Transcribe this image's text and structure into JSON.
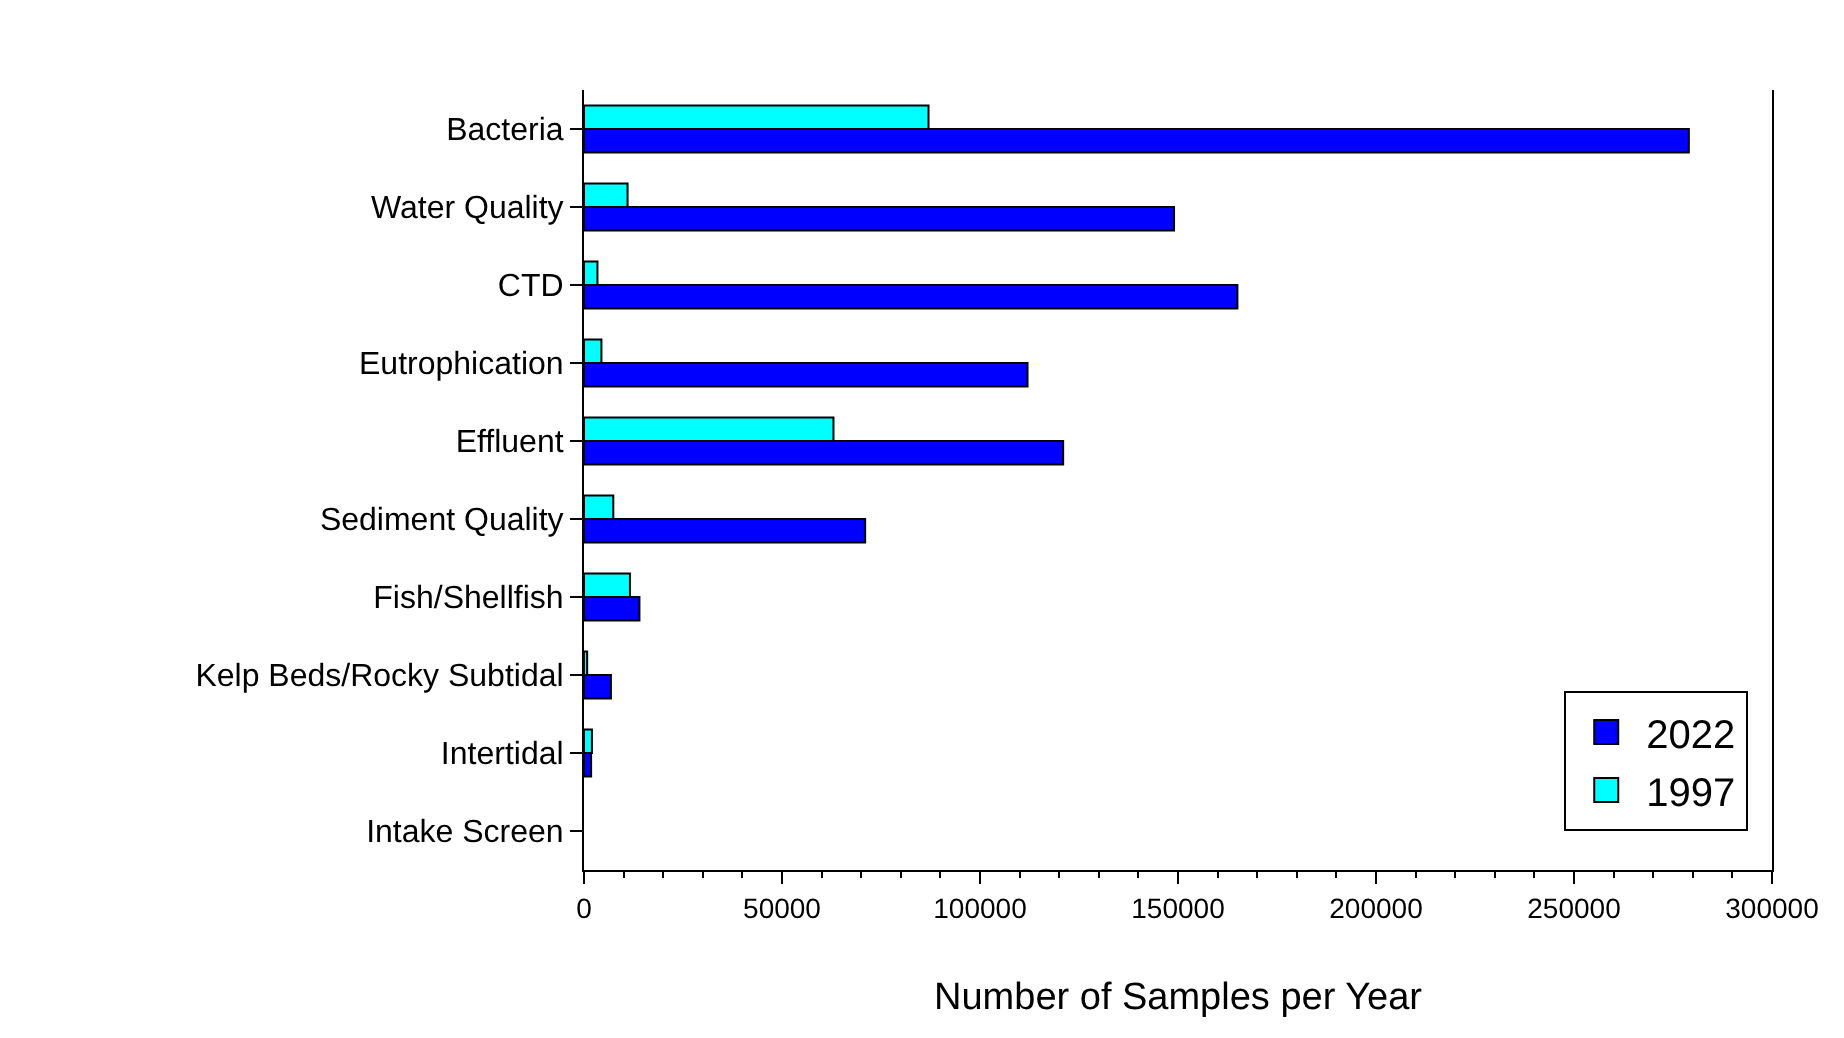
{
  "chart_data": {
    "type": "bar",
    "orientation": "horizontal",
    "xlabel": "Number of Samples per Year",
    "categories": [
      "Bacteria",
      "Water Quality",
      "CTD",
      "Eutrophication",
      "Effluent",
      "Sediment Quality",
      "Fish/Shellfish",
      "Kelp Beds/Rocky Subtidal",
      "Intertidal",
      "Intake Screen"
    ],
    "series": [
      {
        "name": "2022",
        "color": "#0000ff",
        "values": [
          279000,
          149000,
          165000,
          112000,
          121000,
          71000,
          14000,
          6800,
          1800,
          null
        ]
      },
      {
        "name": "1997",
        "color": "#00ffff",
        "values": [
          87000,
          11000,
          3400,
          4400,
          63000,
          7400,
          11600,
          800,
          2000,
          null
        ]
      }
    ],
    "xlim": [
      0,
      300000
    ],
    "xticks": [
      0,
      50000,
      100000,
      150000,
      200000,
      250000,
      300000
    ],
    "legend": "bottom right"
  }
}
